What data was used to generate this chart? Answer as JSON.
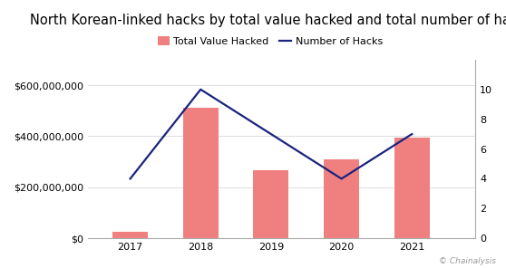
{
  "title": "North Korean-linked hacks by total value hacked and total number of hacks",
  "years": [
    2017,
    2018,
    2019,
    2020,
    2021
  ],
  "total_value_hacked": [
    25000000,
    510000000,
    265000000,
    310000000,
    395000000
  ],
  "number_of_hacks": [
    4,
    10,
    7,
    4,
    7
  ],
  "bar_color": "#f08080",
  "line_color": "#1a237e",
  "bar_label": "Total Value Hacked",
  "line_label": "Number of Hacks",
  "ylim_left": [
    0,
    700000000
  ],
  "ylim_right": [
    0,
    12
  ],
  "yticks_left": [
    0,
    200000000,
    400000000,
    600000000
  ],
  "yticks_right": [
    0,
    2,
    4,
    6,
    8,
    10
  ],
  "background_color": "#ffffff",
  "watermark": "© Chainalysis",
  "title_fontsize": 10.5,
  "legend_fontsize": 8,
  "tick_fontsize": 8,
  "bar_width": 0.5,
  "xlim": [
    2016.4,
    2021.9
  ]
}
